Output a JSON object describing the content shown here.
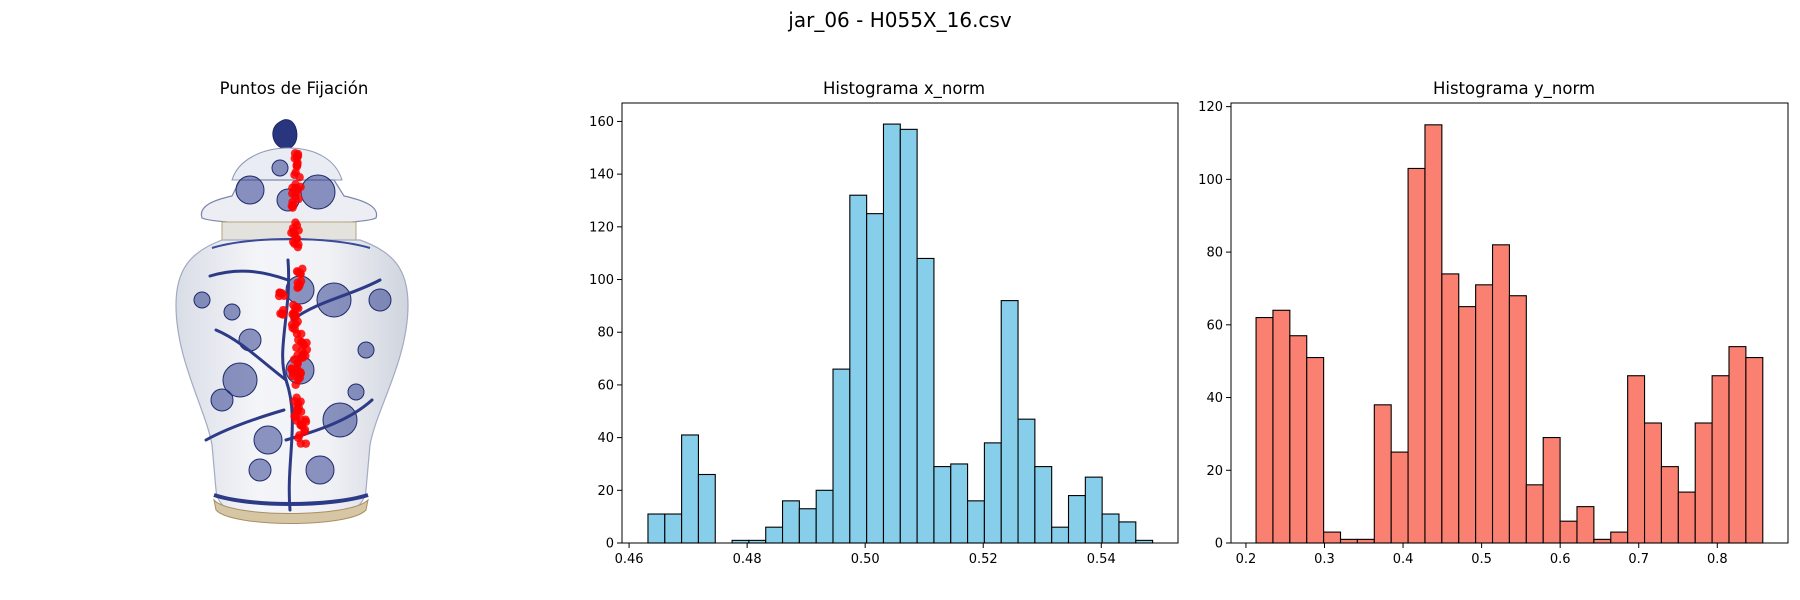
{
  "figure": {
    "suptitle": "jar_06 - H055X_16.csv"
  },
  "chart_data": [
    {
      "type": "image",
      "title": "Puntos de Fijación",
      "description": "Blue-and-white porcelain ginger jar with lid, overlaid with red fixation points",
      "point_color": "#ff0000",
      "axes_visible": false
    },
    {
      "type": "bar",
      "title": "Histograma x_norm",
      "xlabel": "",
      "ylabel": "",
      "color": "#87ceeb",
      "edgecolor": "#000000",
      "bin_start": 0.4632,
      "bin_width": 0.00285,
      "values": [
        11,
        11,
        41,
        26,
        0,
        1,
        1,
        6,
        16,
        13,
        20,
        66,
        132,
        125,
        159,
        157,
        108,
        29,
        30,
        16,
        38,
        92,
        47,
        29,
        6,
        18,
        25,
        11,
        8,
        1
      ],
      "xlim": [
        0.4588,
        0.553
      ],
      "ylim": [
        0,
        167
      ],
      "xticks": [
        0.46,
        0.48,
        0.5,
        0.52,
        0.54
      ],
      "xtick_labels": [
        "0.46",
        "0.48",
        "0.50",
        "0.52",
        "0.54"
      ],
      "yticks": [
        0,
        20,
        40,
        60,
        80,
        100,
        120,
        140,
        160
      ],
      "ytick_labels": [
        "0",
        "20",
        "40",
        "60",
        "80",
        "100",
        "120",
        "140",
        "160"
      ]
    },
    {
      "type": "bar",
      "title": "Histograma y_norm",
      "xlabel": "",
      "ylabel": "",
      "color": "#fa8072",
      "edgecolor": "#000000",
      "bin_start": 0.2129,
      "bin_width": 0.0215,
      "values": [
        62,
        64,
        57,
        51,
        3,
        1,
        1,
        38,
        25,
        103,
        115,
        74,
        65,
        71,
        82,
        68,
        16,
        29,
        6,
        10,
        1,
        3,
        46,
        33,
        21,
        14,
        33,
        46,
        54,
        51
      ],
      "xlim": [
        0.181,
        0.89
      ],
      "ylim": [
        0,
        121
      ],
      "xticks": [
        0.2,
        0.3,
        0.4,
        0.5,
        0.6,
        0.7,
        0.8
      ],
      "xtick_labels": [
        "0.2",
        "0.3",
        "0.4",
        "0.5",
        "0.6",
        "0.7",
        "0.8"
      ],
      "yticks": [
        0,
        20,
        40,
        60,
        80,
        100,
        120
      ],
      "ytick_labels": [
        "0",
        "20",
        "40",
        "60",
        "80",
        "100",
        "120"
      ]
    }
  ]
}
